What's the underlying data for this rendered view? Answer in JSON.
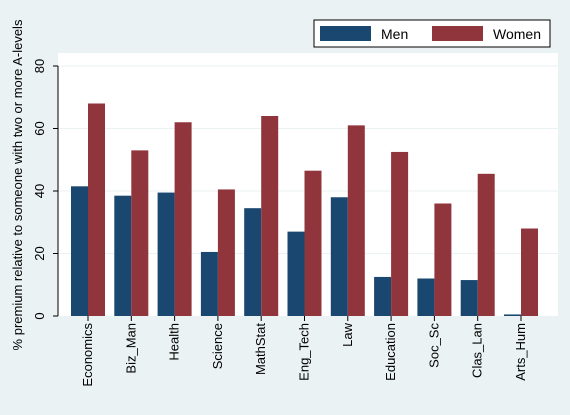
{
  "chart_data": {
    "type": "bar",
    "categories": [
      "Economics",
      "Biz_Man",
      "Health",
      "Science",
      "MathStat",
      "Eng_Tech",
      "Law",
      "Education",
      "Soc_Sc",
      "Clas_Lan",
      "Arts_Hum"
    ],
    "series": [
      {
        "name": "Men",
        "color": "#1a476f",
        "values": [
          41.5,
          38.5,
          39.5,
          20.5,
          34.5,
          27,
          38,
          12.5,
          12,
          11.5,
          0.5
        ]
      },
      {
        "name": "Women",
        "color": "#90353b",
        "values": [
          68,
          53,
          62,
          40.5,
          64,
          46.5,
          61,
          52.5,
          36,
          45.5,
          28
        ]
      }
    ],
    "xlabel": "",
    "ylabel": "% premium relative to someone with two or more A-levels",
    "ylim": [
      0,
      80
    ],
    "yticks": [
      0,
      20,
      40,
      60,
      80
    ],
    "grid": true,
    "legend_position": "top-right",
    "plot_background": "#ffffff",
    "page_background": "#eaf2f3",
    "grid_color": "#eaf2f3"
  }
}
